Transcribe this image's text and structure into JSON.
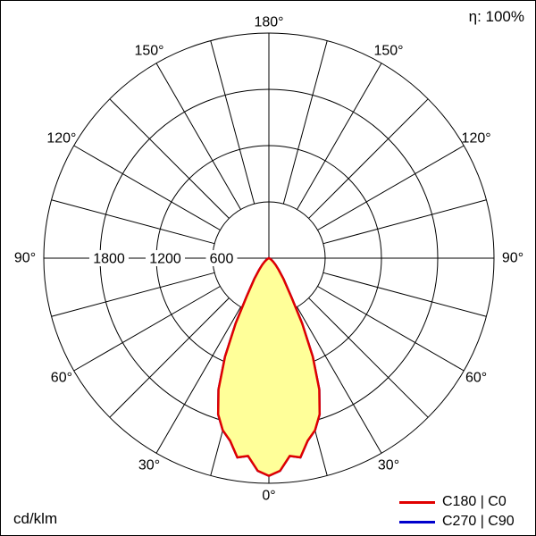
{
  "header": {
    "efficiency_label": "η: 100%"
  },
  "footer": {
    "unit_label": "cd/klm"
  },
  "legend": [
    {
      "label": "C180 | C0",
      "color": "#e00000"
    },
    {
      "label": "C270 | C90",
      "color": "#0000cc"
    }
  ],
  "chart_data": {
    "type": "polar",
    "subtype": "luminous-intensity-distribution",
    "unit": "cd/klm",
    "rmax": 2400,
    "ring_values": [
      600,
      1200,
      1800,
      2400
    ],
    "ring_tick_labels": [
      "600",
      "1200",
      "1800"
    ],
    "spoke_step_deg": 15,
    "angle_ticks_deg": [
      0,
      30,
      60,
      90,
      120,
      150,
      180
    ],
    "angle_tick_labels": [
      "0°",
      "30°",
      "60°",
      "90°",
      "120°",
      "150°",
      "180°"
    ],
    "grid": true,
    "legend_position": "bottom-right",
    "series": [
      {
        "name": "C180 | C0",
        "color": "#e00000",
        "fill": "#ffff99",
        "gamma_deg": [
          0,
          3,
          6,
          9,
          12,
          15,
          18,
          21,
          24,
          27,
          30,
          35,
          40,
          45,
          50,
          55,
          60,
          70,
          80,
          90
        ],
        "values": [
          2320,
          2270,
          2120,
          2150,
          1990,
          1900,
          1750,
          1500,
          1150,
          780,
          480,
          270,
          160,
          100,
          60,
          35,
          20,
          8,
          2,
          0
        ]
      },
      {
        "name": "C270 | C90",
        "color": "#0000cc",
        "fill": "none",
        "coincident_with": "C180 | C0",
        "gamma_deg": [
          0,
          3,
          6,
          9,
          12,
          15,
          18,
          21,
          24,
          27,
          30,
          35,
          40,
          45,
          50,
          55,
          60,
          70,
          80,
          90
        ],
        "values": [
          2320,
          2270,
          2120,
          2150,
          1990,
          1900,
          1750,
          1500,
          1150,
          780,
          480,
          270,
          160,
          100,
          60,
          35,
          20,
          8,
          2,
          0
        ]
      }
    ]
  }
}
